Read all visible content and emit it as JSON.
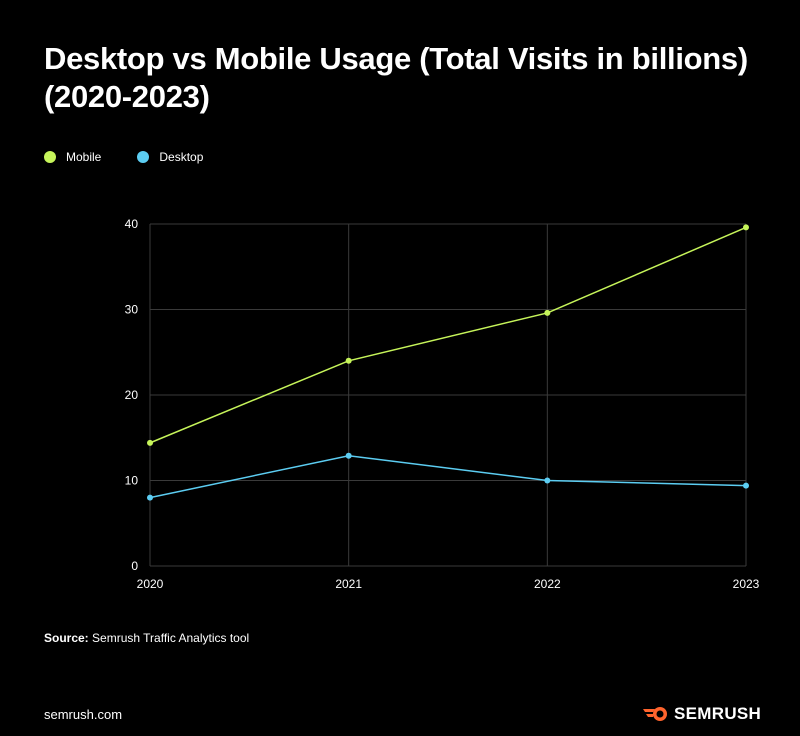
{
  "chart_data": {
    "type": "line",
    "title": "Desktop vs Mobile Usage (Total Visits in billions) (2020-2023)",
    "categories": [
      "2020",
      "2021",
      "2022",
      "2023"
    ],
    "series": [
      {
        "name": "Mobile",
        "color": "#c6f45a",
        "values": [
          14.4,
          24.0,
          29.6,
          39.6
        ]
      },
      {
        "name": "Desktop",
        "color": "#5ccdf2",
        "values": [
          8.0,
          12.9,
          10.0,
          9.4
        ]
      }
    ],
    "yticks": [
      0,
      10,
      20,
      30,
      40
    ],
    "ylim": [
      0,
      40
    ],
    "xlabel": "",
    "ylabel": "",
    "grid": true,
    "legend": "top-left"
  },
  "source": {
    "label": "Source:",
    "text": " Semrush Traffic Analytics tool"
  },
  "footer": {
    "url": "semrush.com",
    "brand": "SEMRUSH",
    "brand_color": "#ff642d"
  }
}
